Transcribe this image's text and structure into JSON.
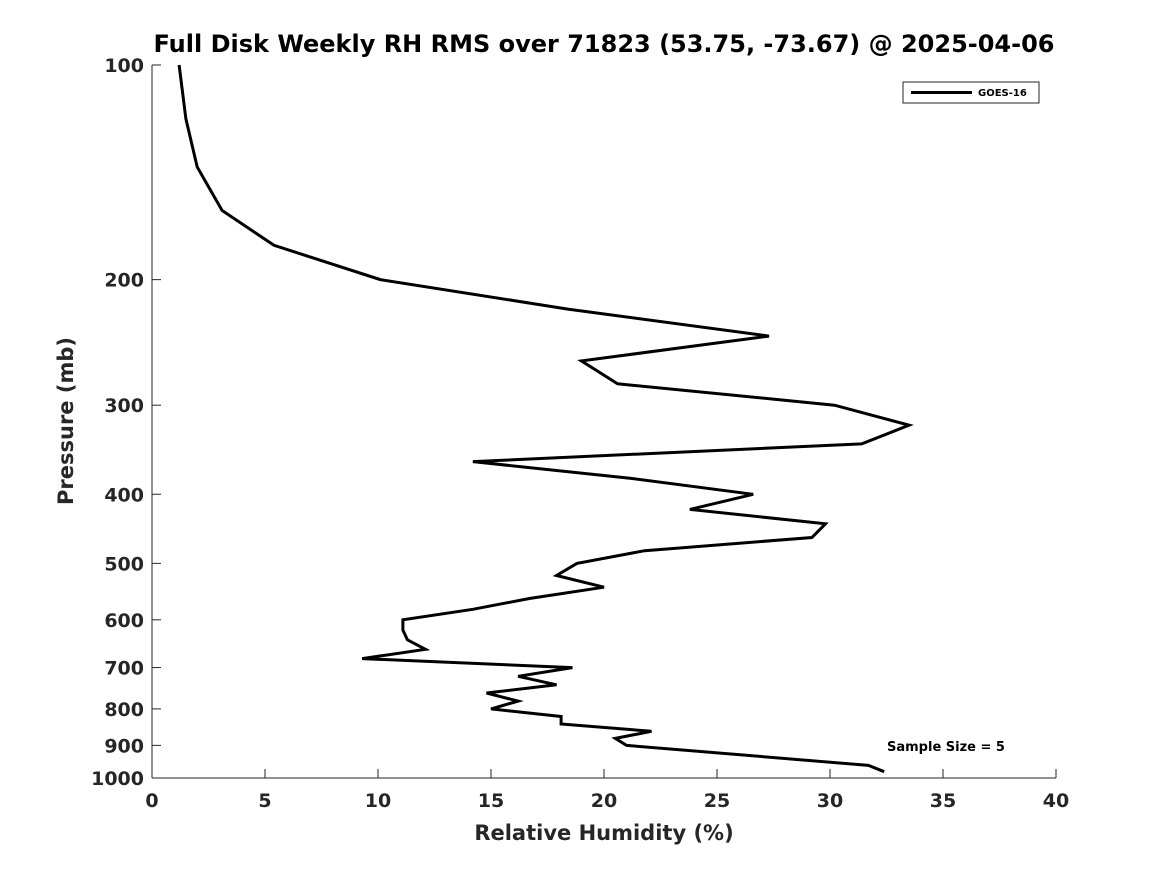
{
  "chart_data": {
    "type": "line",
    "title": "Full Disk Weekly RH RMS over 71823 (53.75, -73.67) @ 2025-04-06",
    "xlabel": "Relative Humidity (%)",
    "ylabel": "Pressure (mb)",
    "xlim": [
      0,
      40
    ],
    "ylim": [
      100,
      1000
    ],
    "yscale": "log",
    "y_reversed": true,
    "xticks": [
      "0",
      "5",
      "10",
      "15",
      "20",
      "25",
      "30",
      "35",
      "40"
    ],
    "yticks": [
      "100",
      "200",
      "300",
      "400",
      "500",
      "600",
      "700",
      "800",
      "900",
      "1000"
    ],
    "grid": false,
    "legend_position": "top-right",
    "annotation": "Sample Size = 5",
    "series": [
      {
        "name": "GOES-16",
        "color": "#000000",
        "points": [
          [
            1.2,
            100
          ],
          [
            1.5,
            119
          ],
          [
            2.0,
            139
          ],
          [
            3.1,
            160
          ],
          [
            5.4,
            179
          ],
          [
            10.1,
            200
          ],
          [
            18.4,
            220
          ],
          [
            27.3,
            240
          ],
          [
            19.0,
            260
          ],
          [
            20.6,
            280
          ],
          [
            30.2,
            300
          ],
          [
            33.5,
            320
          ],
          [
            31.4,
            340
          ],
          [
            14.2,
            360
          ],
          [
            21.2,
            380
          ],
          [
            26.6,
            400
          ],
          [
            23.8,
            420
          ],
          [
            29.8,
            440
          ],
          [
            29.2,
            460
          ],
          [
            21.8,
            480
          ],
          [
            18.8,
            500
          ],
          [
            17.9,
            520
          ],
          [
            20.0,
            540
          ],
          [
            16.7,
            560
          ],
          [
            14.2,
            580
          ],
          [
            11.1,
            600
          ],
          [
            11.1,
            620
          ],
          [
            11.3,
            640
          ],
          [
            12.1,
            660
          ],
          [
            9.3,
            680
          ],
          [
            18.6,
            700
          ],
          [
            16.2,
            720
          ],
          [
            17.9,
            740
          ],
          [
            14.8,
            760
          ],
          [
            16.2,
            780
          ],
          [
            15.0,
            800
          ],
          [
            18.1,
            820
          ],
          [
            18.1,
            840
          ],
          [
            22.1,
            860
          ],
          [
            20.5,
            880
          ],
          [
            21.0,
            900
          ],
          [
            31.7,
            960
          ],
          [
            32.4,
            980
          ]
        ]
      }
    ]
  }
}
